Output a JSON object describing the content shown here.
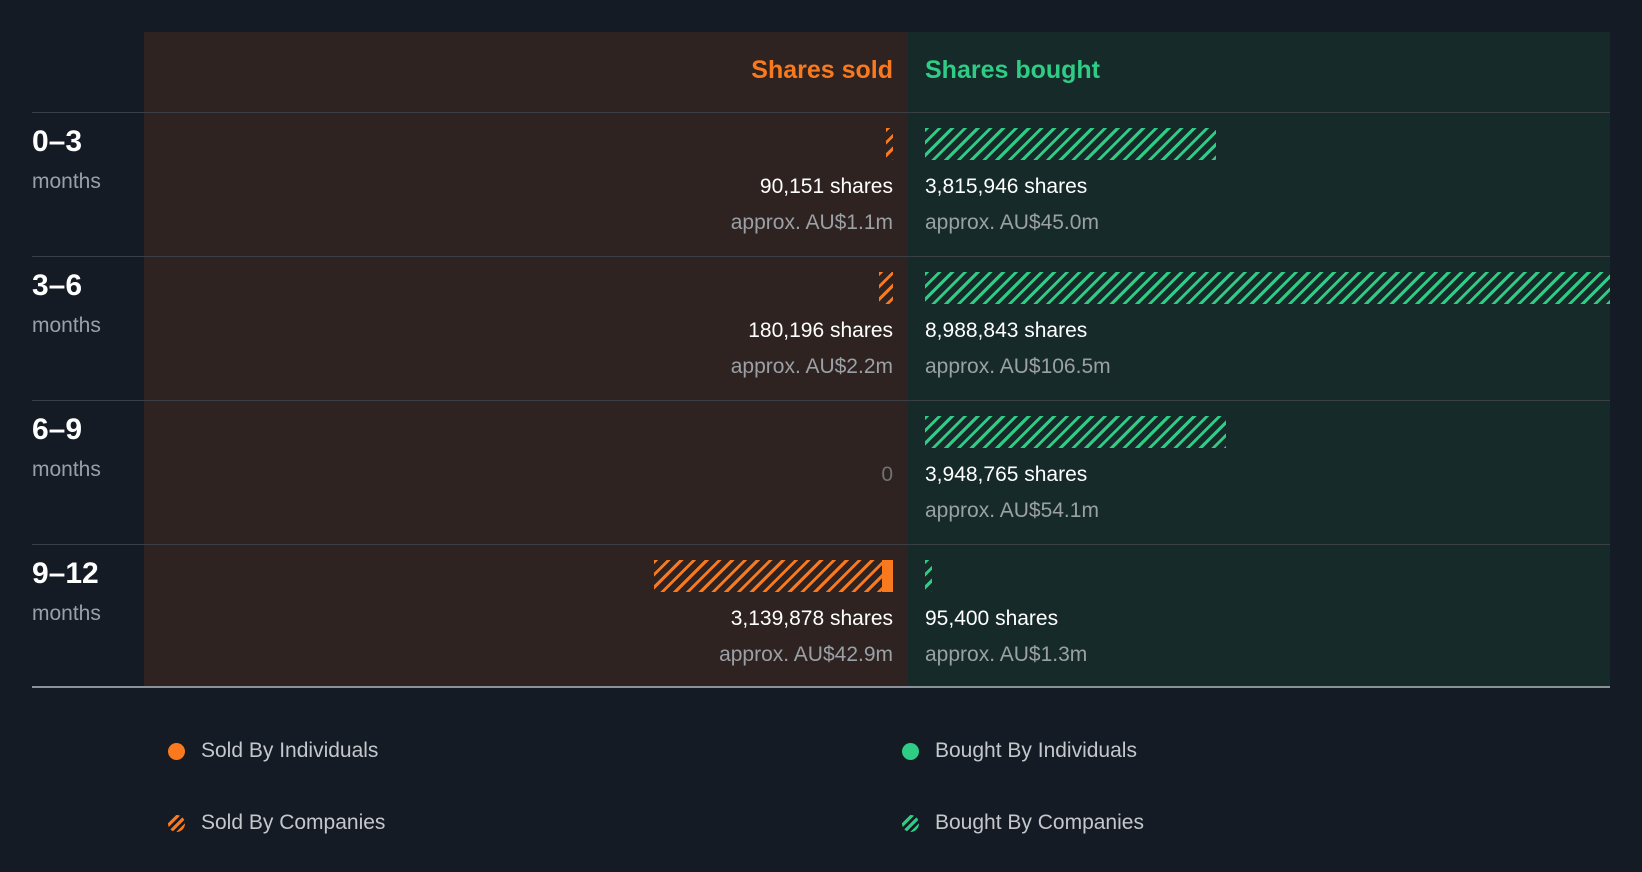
{
  "chart_data": {
    "type": "bar",
    "columns": {
      "sold": "Shares sold",
      "bought": "Shares bought"
    },
    "periods": [
      {
        "range": "0–3",
        "unit": "months",
        "sold": {
          "shares": 90151,
          "label": "90,151 shares",
          "approx": "approx. AU$1.1m",
          "individuals": 0,
          "companies": 90151
        },
        "bought": {
          "shares": 3815946,
          "label": "3,815,946 shares",
          "approx": "approx. AU$45.0m",
          "individuals": 0,
          "companies": 3815946
        }
      },
      {
        "range": "3–6",
        "unit": "months",
        "sold": {
          "shares": 180196,
          "label": "180,196 shares",
          "approx": "approx. AU$2.2m",
          "individuals": 0,
          "companies": 180196
        },
        "bought": {
          "shares": 8988843,
          "label": "8,988,843 shares",
          "approx": "approx. AU$106.5m",
          "individuals": 0,
          "companies": 8988843
        }
      },
      {
        "range": "6–9",
        "unit": "months",
        "sold": {
          "shares": 0,
          "label": "0",
          "approx": "",
          "individuals": 0,
          "companies": 0
        },
        "bought": {
          "shares": 3948765,
          "label": "3,948,765 shares",
          "approx": "approx. AU$54.1m",
          "individuals": 0,
          "companies": 3948765
        }
      },
      {
        "range": "9–12",
        "unit": "months",
        "sold": {
          "shares": 3139878,
          "label": "3,139,878 shares",
          "approx": "approx. AU$42.9m",
          "individuals": 150000,
          "companies": 2989878
        },
        "bought": {
          "shares": 95400,
          "label": "95,400 shares",
          "approx": "approx. AU$1.3m",
          "individuals": 0,
          "companies": 95400
        }
      }
    ],
    "legend": [
      {
        "label": "Sold By Individuals",
        "style": "solid",
        "color": "#f97a1e"
      },
      {
        "label": "Bought By Individuals",
        "style": "solid",
        "color": "#2ecc84"
      },
      {
        "label": "Sold By Companies",
        "style": "hatched",
        "color": "#f97a1e"
      },
      {
        "label": "Bought By Companies",
        "style": "hatched",
        "color": "#2ecc84"
      }
    ],
    "legend_placement": "bottom",
    "colors": {
      "sold": "#f97a1e",
      "bought": "#2ecc84"
    }
  }
}
